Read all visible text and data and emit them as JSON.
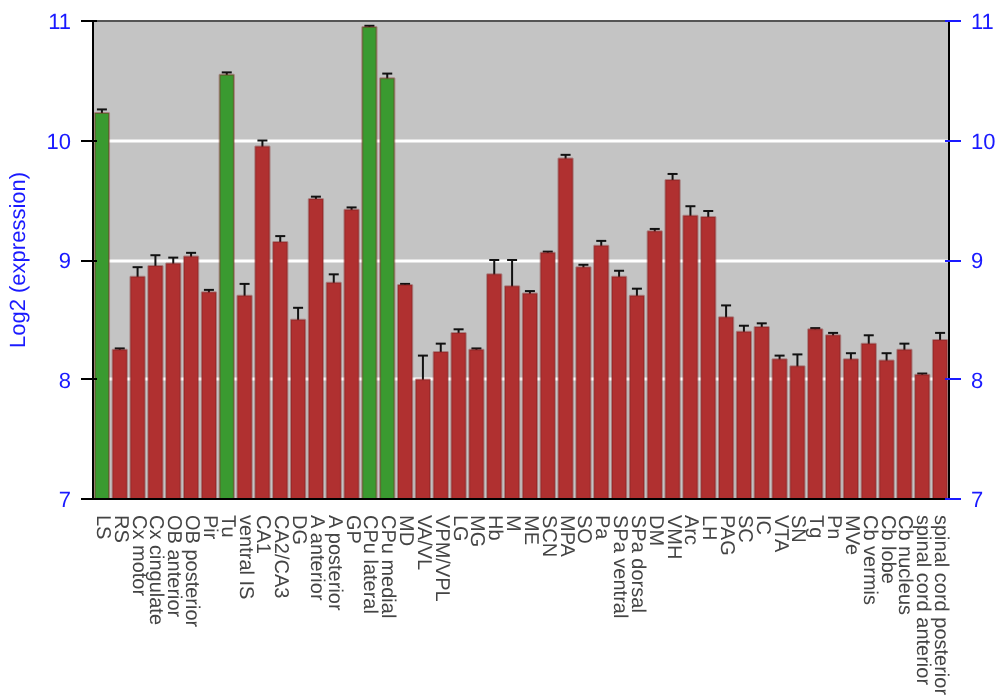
{
  "chart_data": {
    "type": "bar",
    "ylabel": "Log2 (expression)",
    "categories": [
      "LS",
      "RS",
      "Cx motor",
      "Cx cingulate",
      "OB anterior",
      "OB posterior",
      "Pir",
      "Tu",
      "ventral IS",
      "CA1",
      "CA2/CA3",
      "DG",
      "A anterior",
      "A posterior",
      "GP",
      "CPu lateral",
      "CPu medial",
      "MD",
      "VA/VL",
      "VPM/VPL",
      "LG",
      "MG",
      "Hb",
      "M",
      "ME",
      "SCN",
      "MPA",
      "SO",
      "Pa",
      "SPa ventral",
      "SPa dorsal",
      "DM",
      "VMH",
      "Arc",
      "LH",
      "PAG",
      "SC",
      "IC",
      "VTA",
      "SN",
      "Tg",
      "Pn",
      "MVe",
      "Cb vermis",
      "Cb lobe",
      "Cb nucleus",
      "spinal cord anterior",
      "spinal cord posterior"
    ],
    "values": [
      10.23,
      8.25,
      8.86,
      8.95,
      8.97,
      9.03,
      8.73,
      10.55,
      8.7,
      9.95,
      9.15,
      8.5,
      9.51,
      8.81,
      9.42,
      10.95,
      10.52,
      8.79,
      8.0,
      8.23,
      8.39,
      8.25,
      8.88,
      8.78,
      8.72,
      9.06,
      9.85,
      8.94,
      9.12,
      8.86,
      8.7,
      9.24,
      9.67,
      9.37,
      9.36,
      8.52,
      8.4,
      8.44,
      8.17,
      8.11,
      8.42,
      8.37,
      8.17,
      8.3,
      8.16,
      8.25,
      8.04,
      8.33
    ],
    "errors": [
      0.03,
      0.01,
      0.08,
      0.09,
      0.05,
      0.03,
      0.02,
      0.02,
      0.1,
      0.05,
      0.05,
      0.1,
      0.02,
      0.07,
      0.02,
      0.01,
      0.04,
      0.01,
      0.2,
      0.07,
      0.03,
      0.01,
      0.12,
      0.22,
      0.02,
      0.01,
      0.03,
      0.02,
      0.04,
      0.05,
      0.06,
      0.02,
      0.05,
      0.08,
      0.05,
      0.1,
      0.05,
      0.03,
      0.03,
      0.1,
      0.01,
      0.02,
      0.05,
      0.07,
      0.06,
      0.05,
      0.01,
      0.06
    ],
    "colors": [
      "#3a9a30",
      "#b03030",
      "#b03030",
      "#b03030",
      "#b03030",
      "#b03030",
      "#b03030",
      "#3a9a30",
      "#b03030",
      "#b03030",
      "#b03030",
      "#b03030",
      "#b03030",
      "#b03030",
      "#b03030",
      "#3a9a30",
      "#3a9a30",
      "#b03030",
      "#b03030",
      "#b03030",
      "#b03030",
      "#b03030",
      "#b03030",
      "#b03030",
      "#b03030",
      "#b03030",
      "#b03030",
      "#b03030",
      "#b03030",
      "#b03030",
      "#b03030",
      "#b03030",
      "#b03030",
      "#b03030",
      "#b03030",
      "#b03030",
      "#b03030",
      "#b03030",
      "#b03030",
      "#b03030",
      "#b03030",
      "#b03030",
      "#b03030",
      "#b03030",
      "#b03030",
      "#b03030",
      "#b03030",
      "#b03030"
    ],
    "ylim": [
      7,
      11
    ],
    "yticks": [
      7,
      8,
      9,
      10,
      11
    ],
    "y2lim": [
      7,
      11
    ],
    "y2ticks": [
      7,
      8,
      9,
      10,
      11
    ],
    "grid": "y"
  }
}
